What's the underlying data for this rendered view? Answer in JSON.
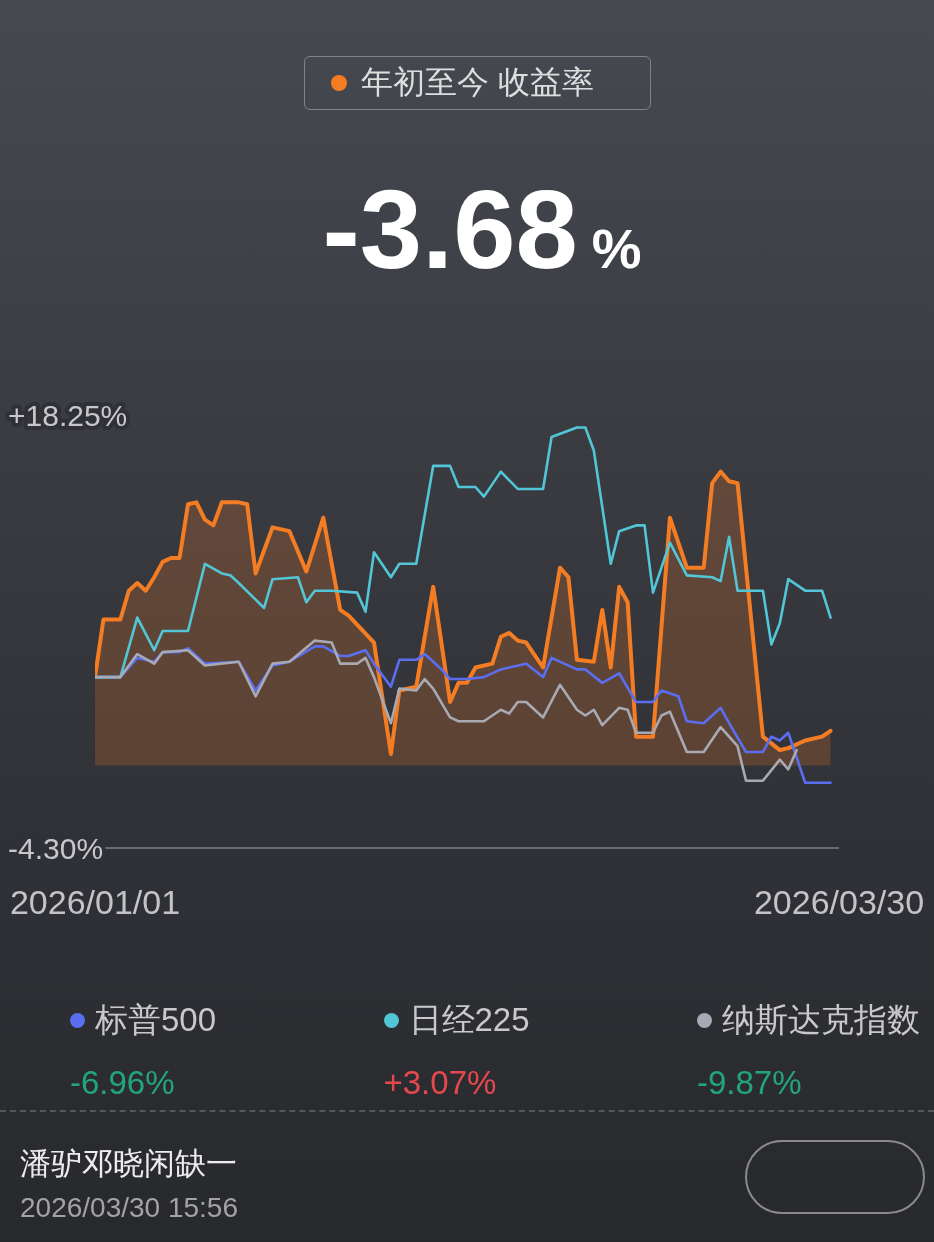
{
  "chart_data": {
    "type": "line",
    "title": "年初至今 收益率",
    "subtitle": "-3.68%",
    "xlim": [
      "2026-01-01",
      "2026-03-30"
    ],
    "xticks": [
      {
        "value": "2026-01-01",
        "label": "2026/01/01"
      },
      {
        "value": "2026-03-30",
        "label": "2026/03/30"
      }
    ],
    "ylim": [
      -4.3,
      18.25
    ],
    "yticks": [
      {
        "value": 18.25,
        "label": "+18.25%"
      },
      {
        "value": -4.3,
        "label": "-4.30%"
      }
    ],
    "legend": "bottom",
    "series": [
      {
        "name": "标普500",
        "color": "#5b6ef0",
        "x": [
          "2026-01-01",
          "2026-01-04",
          "2026-01-06",
          "2026-01-08",
          "2026-01-09",
          "2026-01-11",
          "2026-01-12",
          "2026-01-14",
          "2026-01-18",
          "2026-01-20",
          "2026-01-22",
          "2026-01-24",
          "2026-01-27",
          "2026-01-28",
          "2026-01-30",
          "2026-01-31",
          "2026-02-02",
          "2026-02-03",
          "2026-02-05",
          "2026-02-06",
          "2026-02-08",
          "2026-02-09",
          "2026-02-11",
          "2026-02-12",
          "2026-02-14",
          "2026-02-16",
          "2026-02-18",
          "2026-02-19",
          "2026-02-21",
          "2026-02-23",
          "2026-02-24",
          "2026-02-27",
          "2026-02-28",
          "2026-03-02",
          "2026-03-04",
          "2026-03-06",
          "2026-03-08",
          "2026-03-09",
          "2026-03-11",
          "2026-03-12",
          "2026-03-14",
          "2026-03-16",
          "2026-03-17",
          "2026-03-19",
          "2026-03-21",
          "2026-03-22",
          "2026-03-23",
          "2026-03-24",
          "2026-03-26",
          "2026-03-29"
        ],
        "values": [
          4.6,
          4.6,
          5.6,
          5.4,
          5.9,
          5.9,
          6.1,
          5.3,
          5.4,
          3.9,
          5.2,
          5.4,
          6.2,
          6.2,
          5.7,
          5.7,
          6.0,
          5.3,
          4.1,
          5.5,
          5.5,
          5.8,
          5.0,
          4.5,
          4.5,
          4.6,
          5.0,
          5.1,
          5.3,
          4.6,
          5.6,
          5.0,
          5.0,
          4.3,
          4.8,
          3.3,
          3.3,
          3.9,
          3.6,
          2.3,
          2.2,
          3.0,
          2.2,
          0.7,
          0.7,
          1.5,
          1.3,
          1.7,
          -0.9,
          -0.9
        ]
      },
      {
        "name": "日经225",
        "color": "#52c6d6",
        "x": [
          "2026-01-01",
          "2026-01-04",
          "2026-01-06",
          "2026-01-08",
          "2026-01-09",
          "2026-01-12",
          "2026-01-14",
          "2026-01-16",
          "2026-01-17",
          "2026-01-18",
          "2026-01-21",
          "2026-01-22",
          "2026-01-25",
          "2026-01-26",
          "2026-01-27",
          "2026-01-29",
          "2026-02-01",
          "2026-02-02",
          "2026-02-03",
          "2026-02-05",
          "2026-02-06",
          "2026-02-08",
          "2026-02-10",
          "2026-02-12",
          "2026-02-13",
          "2026-02-15",
          "2026-02-16",
          "2026-02-18",
          "2026-02-20",
          "2026-02-23",
          "2026-02-24",
          "2026-02-27",
          "2026-02-28",
          "2026-03-01",
          "2026-03-03",
          "2026-03-04",
          "2026-03-06",
          "2026-03-07",
          "2026-03-08",
          "2026-03-10",
          "2026-03-12",
          "2026-03-15",
          "2026-03-16",
          "2026-03-17",
          "2026-03-18",
          "2026-03-21",
          "2026-03-22",
          "2026-03-23",
          "2026-03-24",
          "2026-03-26",
          "2026-03-28",
          "2026-03-29"
        ],
        "values": [
          4.6,
          4.6,
          7.7,
          6.0,
          7.0,
          7.0,
          10.5,
          10.0,
          9.9,
          9.5,
          8.2,
          9.7,
          9.8,
          8.5,
          9.1,
          9.1,
          9.0,
          8.0,
          11.1,
          9.8,
          10.5,
          10.5,
          15.6,
          15.6,
          14.5,
          14.5,
          14.0,
          15.3,
          14.4,
          14.4,
          17.1,
          17.6,
          17.6,
          16.4,
          10.5,
          12.2,
          12.5,
          12.5,
          9.0,
          11.6,
          9.9,
          9.8,
          9.6,
          11.9,
          9.1,
          9.1,
          6.3,
          7.4,
          9.7,
          9.1,
          9.1,
          7.7
        ]
      },
      {
        "name": "纳斯达克指数",
        "color": "#a9a9b3",
        "x": [
          "2026-01-01",
          "2026-01-04",
          "2026-01-06",
          "2026-01-08",
          "2026-01-09",
          "2026-01-12",
          "2026-01-14",
          "2026-01-18",
          "2026-01-20",
          "2026-01-22",
          "2026-01-24",
          "2026-01-27",
          "2026-01-29",
          "2026-01-30",
          "2026-02-01",
          "2026-02-02",
          "2026-02-03",
          "2026-02-05",
          "2026-02-06",
          "2026-02-08",
          "2026-02-09",
          "2026-02-10",
          "2026-02-12",
          "2026-02-13",
          "2026-02-16",
          "2026-02-18",
          "2026-02-19",
          "2026-02-20",
          "2026-02-21",
          "2026-02-23",
          "2026-02-25",
          "2026-02-27",
          "2026-02-28",
          "2026-03-01",
          "2026-03-02",
          "2026-03-04",
          "2026-03-05",
          "2026-03-06",
          "2026-03-08",
          "2026-03-09",
          "2026-03-10",
          "2026-03-12",
          "2026-03-14",
          "2026-03-16",
          "2026-03-18",
          "2026-03-19",
          "2026-03-21",
          "2026-03-23",
          "2026-03-24",
          "2026-03-25"
        ],
        "values": [
          4.6,
          4.6,
          5.8,
          5.3,
          5.9,
          6.0,
          5.2,
          5.4,
          3.6,
          5.3,
          5.4,
          6.5,
          6.4,
          5.3,
          5.3,
          5.6,
          4.6,
          2.2,
          4.0,
          3.9,
          4.5,
          4.0,
          2.5,
          2.3,
          2.3,
          2.9,
          2.7,
          3.3,
          3.3,
          2.5,
          4.2,
          2.9,
          2.6,
          2.9,
          2.1,
          3.0,
          2.9,
          1.7,
          1.7,
          2.6,
          2.8,
          0.7,
          0.7,
          2.0,
          1.0,
          -0.8,
          -0.8,
          0.3,
          -0.2,
          0.8
        ]
      },
      {
        "type": "area",
        "color": "#f47d24",
        "x": [
          "2026-01-01",
          "2026-01-02",
          "2026-01-04",
          "2026-01-05",
          "2026-01-06",
          "2026-01-07",
          "2026-01-08",
          "2026-01-09",
          "2026-01-10",
          "2026-01-11",
          "2026-01-12",
          "2026-01-13",
          "2026-01-14",
          "2026-01-15",
          "2026-01-16",
          "2026-01-18",
          "2026-01-19",
          "2026-01-20",
          "2026-01-22",
          "2026-01-24",
          "2026-01-26",
          "2026-01-28",
          "2026-01-30",
          "2026-01-31",
          "2026-02-03",
          "2026-02-05",
          "2026-02-06",
          "2026-02-08",
          "2026-02-10",
          "2026-02-12",
          "2026-02-13",
          "2026-02-14",
          "2026-02-15",
          "2026-02-17",
          "2026-02-18",
          "2026-02-19",
          "2026-02-20",
          "2026-02-21",
          "2026-02-23",
          "2026-02-25",
          "2026-02-26",
          "2026-02-27",
          "2026-03-01",
          "2026-03-02",
          "2026-03-03",
          "2026-03-04",
          "2026-03-05",
          "2026-03-06",
          "2026-03-08",
          "2026-03-10",
          "2026-03-12",
          "2026-03-14",
          "2026-03-15",
          "2026-03-16",
          "2026-03-17",
          "2026-03-18",
          "2026-03-21",
          "2026-03-23",
          "2026-03-24",
          "2026-03-26",
          "2026-03-28",
          "2026-03-29"
        ],
        "values": [
          4.6,
          7.6,
          7.6,
          9.1,
          9.5,
          9.1,
          9.8,
          10.6,
          10.8,
          10.8,
          13.6,
          13.7,
          12.8,
          12.5,
          13.7,
          13.7,
          13.6,
          10.0,
          12.4,
          12.2,
          10.1,
          12.9,
          8.1,
          7.8,
          6.4,
          0.6,
          3.9,
          4.1,
          9.3,
          3.3,
          4.3,
          4.3,
          5.1,
          5.3,
          6.7,
          6.9,
          6.5,
          6.4,
          5.1,
          10.3,
          9.8,
          5.5,
          5.4,
          8.1,
          5.1,
          9.3,
          8.5,
          1.5,
          1.5,
          12.9,
          10.3,
          10.3,
          14.7,
          15.3,
          14.8,
          14.7,
          1.5,
          0.8,
          0.9,
          1.3,
          1.5,
          1.8
        ]
      }
    ],
    "annotations": [
      "-6.96%",
      "+3.07%",
      "-9.87%",
      "潘驴邓晓闲缺一",
      "2026/03/30 15:56"
    ]
  }
}
